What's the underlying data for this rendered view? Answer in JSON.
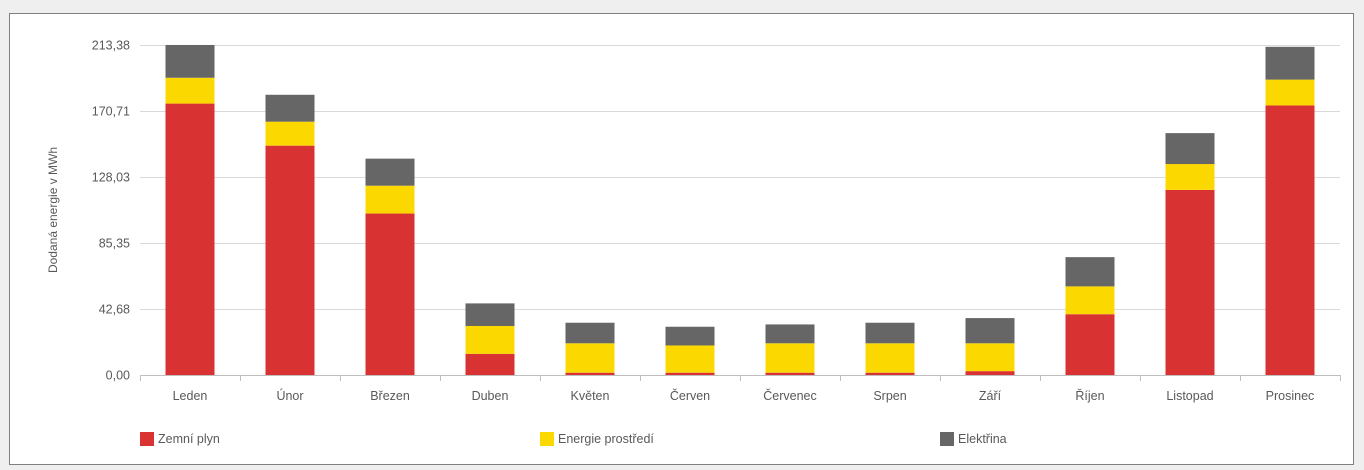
{
  "chart_data": {
    "type": "bar",
    "stacked": true,
    "title": "",
    "xlabel": "",
    "ylabel": "Dodaná energie v MWh",
    "ylim": [
      0,
      213.38
    ],
    "yticks": [
      "0,00",
      "42,68",
      "85,35",
      "128,03",
      "170,71",
      "213,38"
    ],
    "ytick_values": [
      0,
      42.68,
      85.35,
      128.03,
      170.71,
      213.38
    ],
    "grid": true,
    "legend_position": "bottom",
    "categories": [
      "Leden",
      "Únor",
      "Březen",
      "Duben",
      "Květen",
      "Červen",
      "Červenec",
      "Srpen",
      "Září",
      "Říjen",
      "Listopad",
      "Prosinec"
    ],
    "series": [
      {
        "name": "Zemní plyn",
        "color": "#d93232",
        "values": [
          175.5,
          148.3,
          104.4,
          13.7,
          1.5,
          1.5,
          1.5,
          1.5,
          2.5,
          39.3,
          119.7,
          174.3
        ]
      },
      {
        "name": "Energie prostředí",
        "color": "#fbd800",
        "values": [
          16.7,
          15.5,
          18.0,
          18.0,
          19.0,
          17.6,
          19.0,
          19.0,
          18.0,
          18.0,
          16.7,
          16.7
        ]
      },
      {
        "name": "Elektřina",
        "color": "#666666",
        "values": [
          21.2,
          17.4,
          17.5,
          14.6,
          13.3,
          12.1,
          12.2,
          13.3,
          16.3,
          18.9,
          20.0,
          21.2
        ]
      }
    ]
  }
}
